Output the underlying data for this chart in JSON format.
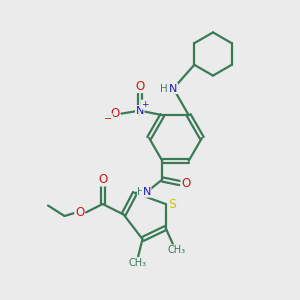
{
  "background_color": "#ebebeb",
  "bond_color": "#3a7a58",
  "bond_width": 1.6,
  "atom_colors": {
    "N": "#1a1acc",
    "O": "#cc1a1a",
    "S": "#c8c800",
    "H": "#4a7a6a",
    "C": "#3a7a58",
    "default": "#3a7a58"
  }
}
